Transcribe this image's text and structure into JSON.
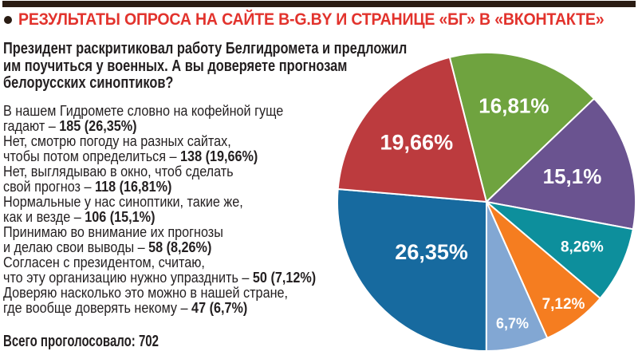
{
  "page": {
    "top_bar_color": "#2a1c13",
    "background": "#ffffff",
    "text_color": "#231f20",
    "accent_red": "#e2332d"
  },
  "header": {
    "title": "РЕЗУЛЬТАТЫ ОПРОСА НА САЙТЕ B-G.BY И СТРАНИЦЕ «БГ» В «ВКОНТАКТЕ»"
  },
  "poll": {
    "question": "Президент раскритиковал работу Белгидромета и предложил\nим поучиться у военных. А вы доверяете прогнозам\nбелорусских синоптиков?",
    "answers": [
      {
        "line1": "В нашем Гидромете словно на кофейной гуще",
        "line2": "гадают – ",
        "value": "185 (26,35%)"
      },
      {
        "line1": "Нет, смотрю погоду на разных сайтах,",
        "line2": "чтобы потом определиться – ",
        "value": "138 (19,66%)"
      },
      {
        "line1": "Нет, выглядываю в окно, чтоб сделать",
        "line2": "свой прогноз – ",
        "value": "118 (16,81%)"
      },
      {
        "line1": "Нормальные у нас синоптики, такие же,",
        "line2": "как и везде – ",
        "value": "106 (15,1%)"
      },
      {
        "line1": "Принимаю во внимание их прогнозы",
        "line2": "и делаю свои выводы – ",
        "value": "58 (8,26%)"
      },
      {
        "line1": "Согласен с президентом, считаю,",
        "line2": "что эту организацию нужно упразднить – ",
        "value": "50 (7,12%)"
      },
      {
        "line1": "Доверяю насколько это можно в нашей стране,",
        "line2": "где вообще доверять некому – ",
        "value": "47 (6,7%)"
      }
    ],
    "total": "Всего проголосовало: 702"
  },
  "chart_data": {
    "type": "pie",
    "title": "Результаты опроса: доверяете ли вы прогнозам белорусских синоптиков?",
    "total_votes": 702,
    "start_angle_deg": -14.3,
    "clockwise": true,
    "center": [
      610,
      253
    ],
    "radius": 187,
    "separator_color": "#ffffff",
    "label_color": "#ffffff",
    "slices": [
      {
        "label": "Нет, выглядываю в окно, чтоб сделать свой прогноз",
        "votes": 118,
        "value": 16.81,
        "display": "16,81%",
        "color": "#6fa33f",
        "label_r": 0.67,
        "label_size": 26
      },
      {
        "label": "Нормальные у нас синоптики, такие же, как и везде",
        "votes": 106,
        "value": 15.1,
        "display": "15,1%",
        "color": "#6a5390",
        "label_r": 0.6,
        "label_size": 26
      },
      {
        "label": "Принимаю во внимание их прогнозы и делаю свои выводы",
        "votes": 58,
        "value": 8.26,
        "display": "8,26%",
        "color": "#0d8f9c",
        "label_r": 0.71,
        "label_size": 19
      },
      {
        "label": "Согласен с президентом, считаю, что эту организацию нужно упразднить",
        "votes": 50,
        "value": 7.12,
        "display": "7,12%",
        "color": "#f57d20",
        "label_r": 0.86,
        "label_size": 19
      },
      {
        "label": "Доверяю насколько это можно в нашей стране, где вообще доверять некому",
        "votes": 47,
        "value": 6.7,
        "display": "6,7%",
        "color": "#82a7d3",
        "label_r": 0.835,
        "label_size": 18
      },
      {
        "label": "В нашем Гидромете словно на кофейной гуще гадают",
        "votes": 185,
        "value": 26.35,
        "display": "26,35%",
        "color": "#176a9f",
        "label_r": 0.5,
        "label_size": 27
      },
      {
        "label": "Нет, смотрю погоду на разных сайтах, чтобы потом определиться",
        "votes": 138,
        "value": 19.66,
        "display": "19,66%",
        "color": "#bc3b3e",
        "label_r": 0.615,
        "label_size": 27
      }
    ]
  }
}
